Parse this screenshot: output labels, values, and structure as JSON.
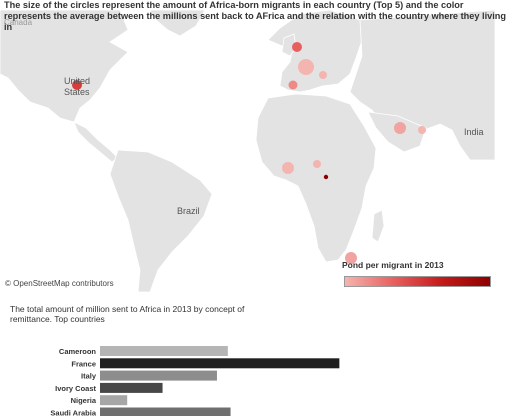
{
  "headline": "The size of the circles represent the amount of Africa-born migrants in each country (Top 5) and the color represents the average between the millions sent back to AFrica and the relation with the country where they living in",
  "map": {
    "labels": {
      "us": "United States",
      "india": "India",
      "brazil": "Brazil",
      "canada": "Canada"
    },
    "attribution": "© OpenStreetMap contributors",
    "colors": {
      "land": "#e3e3e3",
      "water": "#ffffff",
      "border": "#ffffff"
    }
  },
  "legend": {
    "title": "Pond per migrant in 2013",
    "colors": [
      "#f4b4b0",
      "#e8605e",
      "#c41a1a",
      "#8e0000"
    ]
  },
  "chart_data": {
    "type": "bar",
    "orientation": "horizontal",
    "title": "The total amount of million sent to Africa in 2013 by concept of remittance. Top countries",
    "categories": [
      "Cameroon",
      "France",
      "Italy",
      "Ivory Coast",
      "Nigeria",
      "Saudi Arabia"
    ],
    "values": [
      47,
      88,
      43,
      23,
      10,
      48
    ],
    "colors": [
      "#b5b5b5",
      "#1f1f1f",
      "#8d8d8d",
      "#474747",
      "#a6a6a6",
      "#6f6f6f"
    ],
    "xlim": [
      0,
      100
    ]
  }
}
